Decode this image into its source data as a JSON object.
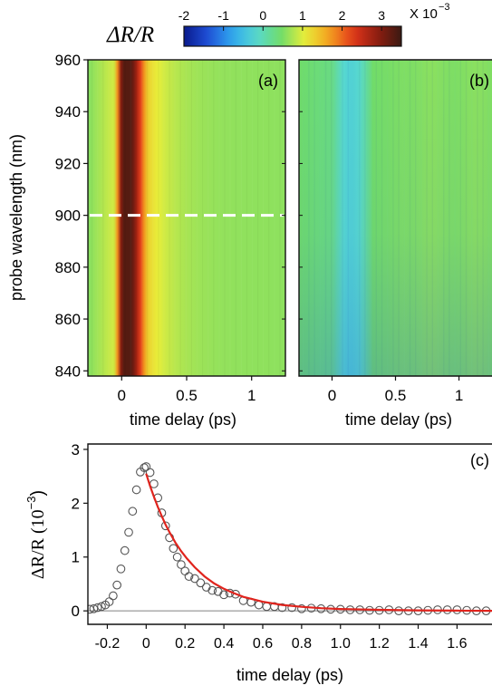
{
  "colors": {
    "colormap": [
      "#0a1a8c",
      "#1f4fd8",
      "#2fa8ee",
      "#57d9d0",
      "#6fdc6a",
      "#e8ee3a",
      "#f4a21f",
      "#e2361a",
      "#8e1d10",
      "#3a1a12"
    ],
    "axis": "#111111",
    "marker_stroke": "#555555",
    "fit_line": "#e0241d",
    "cut_line": "#ffffff",
    "zero_line": "#808080"
  },
  "chart_data": [
    {
      "type": "heatmap",
      "panel_label": "(a)",
      "xlabel": "time delay (ps)",
      "ylabel": "probe wavelength (nm)",
      "xlim": [
        -0.26,
        1.26
      ],
      "ylim": [
        838,
        960
      ],
      "xticks": [
        "0",
        "0.5",
        "1"
      ],
      "yticks": [
        "960",
        "940",
        "920",
        "900",
        "880",
        "860",
        "840"
      ],
      "cut_line_wavelength_nm": 900,
      "colorbar": {
        "label": "ΔR/R",
        "ticks": [
          "-2",
          "-1",
          "0",
          "1",
          "2",
          "3"
        ],
        "range": [
          -2,
          3.5
        ],
        "exponent_prefix": "X 10",
        "exponent": "−3"
      }
    },
    {
      "type": "heatmap",
      "panel_label": "(b)",
      "xlabel": "time delay (ps)",
      "xlim": [
        -0.26,
        1.26
      ],
      "xticks": [
        "0",
        "0.5",
        "1"
      ]
    },
    {
      "type": "scatter",
      "panel_label": "(c)",
      "xlabel": "time delay (ps)",
      "ylabel": "ΔR/R (10",
      "ylabel_exp": "−3",
      "ylabel_close": ")",
      "xlim": [
        -0.3,
        1.78
      ],
      "ylim": [
        -0.25,
        3.1
      ],
      "xticks": [
        "-0.2",
        "0",
        "0.2",
        "0.4",
        "0.6",
        "0.8",
        "1.0",
        "1.2",
        "1.4",
        "1.6"
      ],
      "yticks": [
        "0",
        "1",
        "2",
        "3"
      ],
      "series": [
        {
          "kind": "markers",
          "x": [
            -0.29,
            -0.27,
            -0.25,
            -0.23,
            -0.21,
            -0.19,
            -0.17,
            -0.15,
            -0.13,
            -0.11,
            -0.09,
            -0.07,
            -0.05,
            -0.03,
            -0.01,
            0.0,
            0.02,
            0.04,
            0.06,
            0.08,
            0.1,
            0.12,
            0.14,
            0.16,
            0.18,
            0.2,
            0.22,
            0.25,
            0.28,
            0.31,
            0.34,
            0.37,
            0.4,
            0.43,
            0.46,
            0.5,
            0.54,
            0.58,
            0.62,
            0.66,
            0.7,
            0.75,
            0.8,
            0.85,
            0.9,
            0.95,
            1.0,
            1.05,
            1.1,
            1.15,
            1.2,
            1.25,
            1.3,
            1.35,
            1.4,
            1.45,
            1.5,
            1.55,
            1.6,
            1.65,
            1.7,
            1.75
          ],
          "y": [
            0.03,
            0.04,
            0.06,
            0.08,
            0.11,
            0.17,
            0.28,
            0.48,
            0.78,
            1.12,
            1.46,
            1.85,
            2.25,
            2.58,
            2.66,
            2.68,
            2.57,
            2.36,
            2.1,
            1.82,
            1.58,
            1.36,
            1.16,
            1.0,
            0.86,
            0.74,
            0.64,
            0.6,
            0.52,
            0.44,
            0.38,
            0.36,
            0.3,
            0.33,
            0.31,
            0.19,
            0.16,
            0.11,
            0.08,
            0.08,
            0.06,
            0.06,
            0.04,
            0.05,
            0.04,
            0.03,
            0.03,
            0.02,
            0.02,
            0.01,
            0.01,
            0.02,
            0.0,
            0.0,
            0.0,
            0.01,
            0.02,
            0.02,
            0.02,
            0.01,
            0.0,
            0.0
          ]
        },
        {
          "kind": "fit",
          "x": [
            0.0,
            0.02,
            0.04,
            0.06,
            0.08,
            0.1,
            0.12,
            0.15,
            0.18,
            0.21,
            0.25,
            0.3,
            0.35,
            0.4,
            0.45,
            0.5,
            0.6,
            0.7,
            0.8,
            0.9,
            1.0,
            1.2,
            1.4,
            1.6,
            1.78
          ],
          "y": [
            2.55,
            2.32,
            2.12,
            1.93,
            1.76,
            1.6,
            1.46,
            1.27,
            1.11,
            0.97,
            0.81,
            0.64,
            0.51,
            0.41,
            0.33,
            0.26,
            0.17,
            0.11,
            0.075,
            0.05,
            0.035,
            0.02,
            0.01,
            0.005,
            0.0
          ]
        }
      ]
    }
  ]
}
